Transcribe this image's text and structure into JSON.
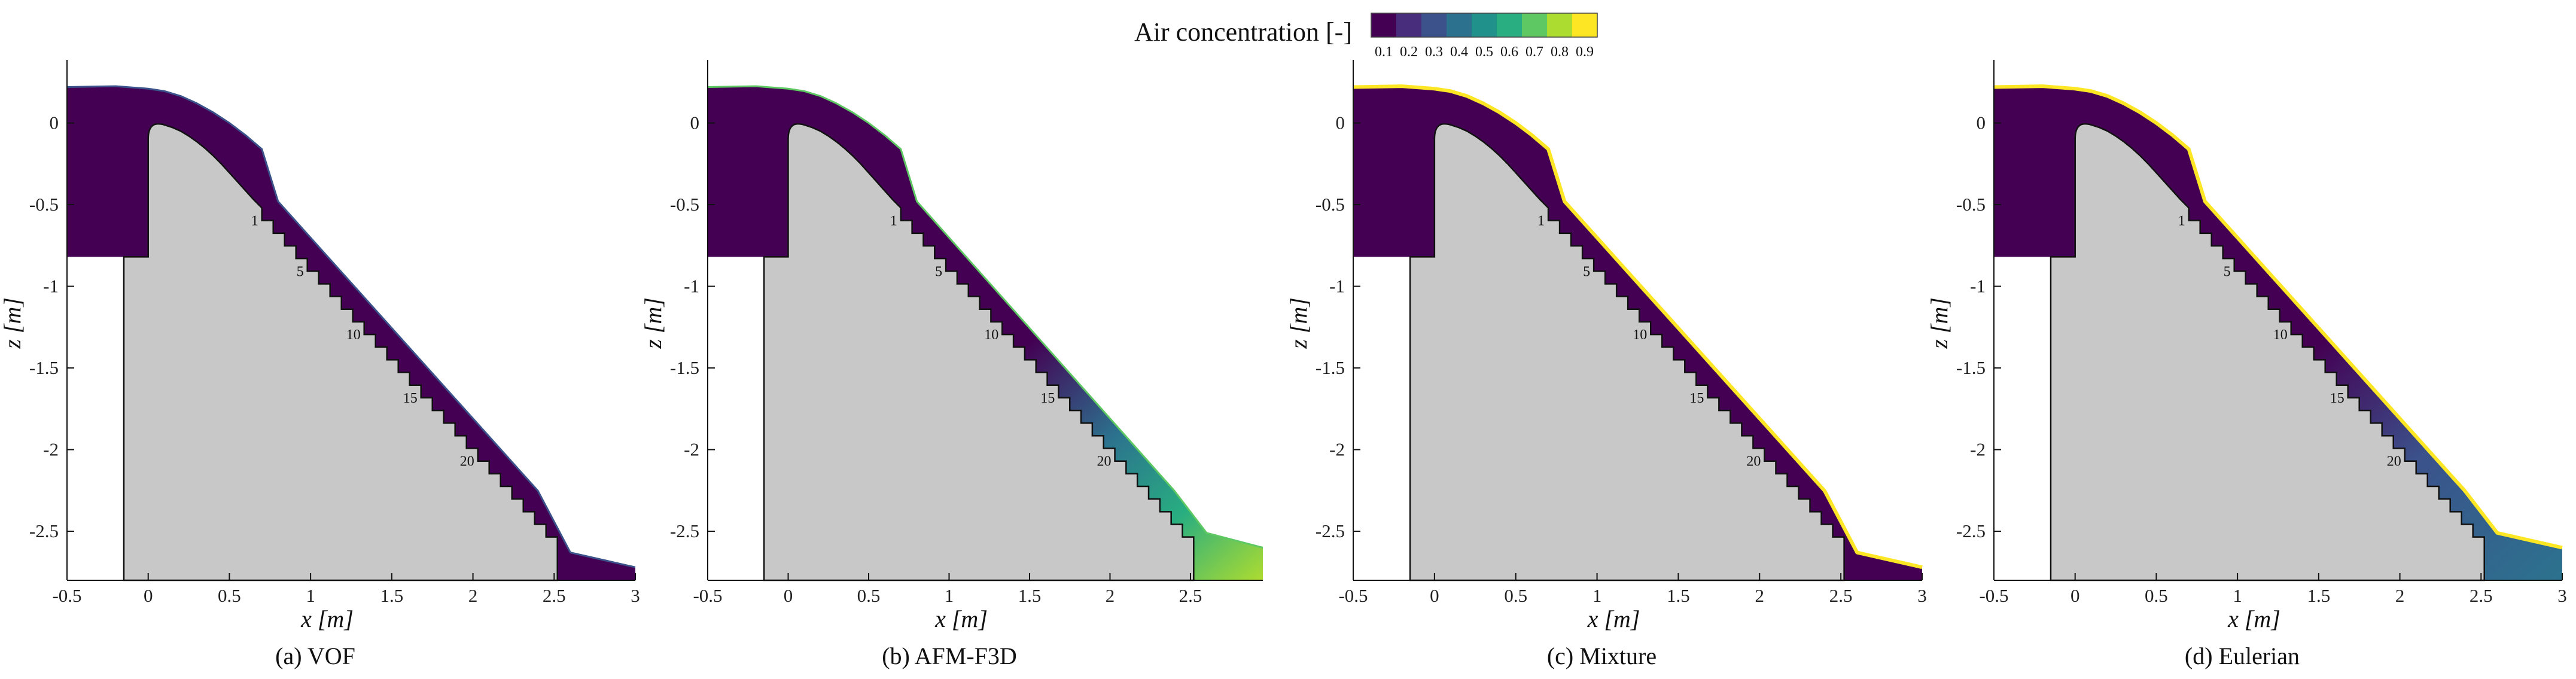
{
  "colorbar": {
    "title": "Air concentration [-]",
    "levels": [
      0.1,
      0.2,
      0.3,
      0.4,
      0.5,
      0.6,
      0.7,
      0.8,
      0.9
    ],
    "tick_labels": [
      "0.1",
      "0.2",
      "0.3",
      "0.4",
      "0.5",
      "0.6",
      "0.7",
      "0.8",
      "0.9"
    ],
    "colors": [
      "#440154",
      "#472d7b",
      "#3b528b",
      "#2c728e",
      "#21918c",
      "#28ae80",
      "#5ec962",
      "#addc30",
      "#fde725"
    ]
  },
  "chart_data": [
    {
      "type": "contour",
      "caption": "(a) VOF",
      "xlabel": "x [m]",
      "ylabel": "z [m]",
      "xlim": [
        -0.5,
        3.0
      ],
      "ylim": [
        -2.8,
        0.35
      ],
      "x_ticks": [
        -0.5,
        0,
        0.5,
        1,
        1.5,
        2,
        2.5,
        3
      ],
      "x_tick_labels": [
        "-0.5",
        "0",
        "0.5",
        "1",
        "1.5",
        "2",
        "2.5",
        "3"
      ],
      "y_ticks": [
        0,
        -0.5,
        -1,
        -1.5,
        -2,
        -2.5
      ],
      "y_tick_labels": [
        "0",
        "-0.5",
        "-1",
        "-1.5",
        "-2",
        "-2.5"
      ],
      "step_labels": [
        "1",
        "5",
        "10",
        "15",
        "20"
      ],
      "max_aeration": 0.2
    },
    {
      "type": "contour",
      "caption": "(b) AFM-F3D",
      "xlabel": "x [m]",
      "ylabel": "z [m]",
      "xlim": [
        -0.5,
        2.95
      ],
      "ylim": [
        -2.8,
        0.35
      ],
      "x_ticks": [
        -0.5,
        0,
        0.5,
        1,
        1.5,
        2,
        2.5
      ],
      "x_tick_labels": [
        "-0.5",
        "0",
        "0.5",
        "1",
        "1.5",
        "2",
        "2.5"
      ],
      "y_ticks": [
        0,
        -0.5,
        -1,
        -1.5,
        -2,
        -2.5
      ],
      "y_tick_labels": [
        "0",
        "-0.5",
        "-1",
        "-1.5",
        "-2",
        "-2.5"
      ],
      "step_labels": [
        "1",
        "5",
        "10",
        "15",
        "20"
      ],
      "max_aeration": 0.8
    },
    {
      "type": "contour",
      "caption": "(c) Mixture",
      "xlabel": "x [m]",
      "ylabel": "z [m]",
      "xlim": [
        -0.5,
        3.0
      ],
      "ylim": [
        -2.8,
        0.35
      ],
      "x_ticks": [
        -0.5,
        0,
        0.5,
        1,
        1.5,
        2,
        2.5,
        3
      ],
      "x_tick_labels": [
        "-0.5",
        "0",
        "0.5",
        "1",
        "1.5",
        "2",
        "2.5",
        "3"
      ],
      "y_ticks": [
        0,
        -0.5,
        -1,
        -1.5,
        -2,
        -2.5
      ],
      "y_tick_labels": [
        "0",
        "-0.5",
        "-1",
        "-1.5",
        "-2",
        "-2.5"
      ],
      "step_labels": [
        "1",
        "5",
        "10",
        "15",
        "20"
      ],
      "max_aeration": 0.9
    },
    {
      "type": "contour",
      "caption": "(d) Eulerian",
      "xlabel": "x [m]",
      "ylabel": "z [m]",
      "xlim": [
        -0.5,
        3.0
      ],
      "ylim": [
        -2.8,
        0.35
      ],
      "x_ticks": [
        -0.5,
        0,
        0.5,
        1,
        1.5,
        2,
        2.5,
        3
      ],
      "x_tick_labels": [
        "-0.5",
        "0",
        "0.5",
        "1",
        "1.5",
        "2",
        "2.5",
        "3"
      ],
      "y_ticks": [
        0,
        -0.5,
        -1,
        -1.5,
        -2,
        -2.5
      ],
      "y_tick_labels": [
        "0",
        "-0.5",
        "-1",
        "-1.5",
        "-2",
        "-2.5"
      ],
      "step_labels": [
        "1",
        "5",
        "10",
        "15",
        "20"
      ],
      "max_aeration": 0.9
    }
  ]
}
